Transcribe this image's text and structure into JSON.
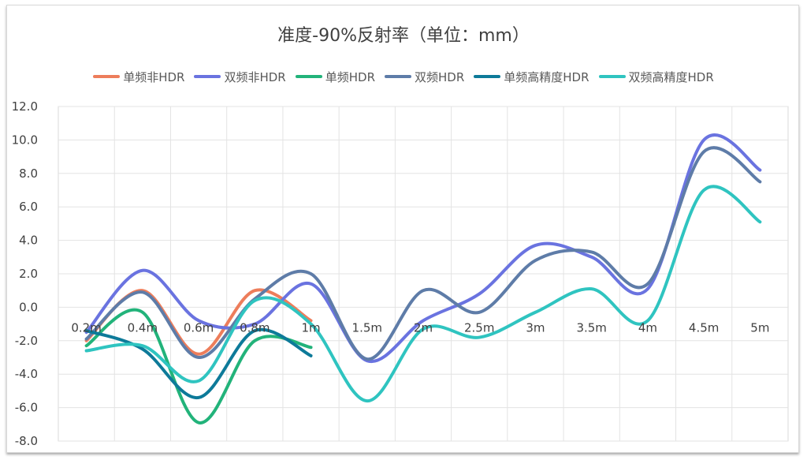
{
  "chart_data": {
    "type": "line",
    "title": "准度-90%反射率（单位：mm）",
    "xlabel": "",
    "ylabel": "",
    "categories": [
      "0.2m",
      "0.4m",
      "0.6m",
      "0.8m",
      "1m",
      "1.5m",
      "2m",
      "2.5m",
      "3m",
      "3.5m",
      "4m",
      "4.5m",
      "5m"
    ],
    "ylim": [
      -8,
      12
    ],
    "yticks": [
      "12.0",
      "10.0",
      "8.0",
      "6.0",
      "4.0",
      "2.0",
      "0.0",
      "-2.0",
      "-4.0",
      "-6.0",
      "-8.0"
    ],
    "grid": true,
    "legend_position": "top",
    "series": [
      {
        "name": "单频非HDR",
        "color": "#ED7D5B",
        "values": [
          -2.0,
          1.0,
          -2.8,
          1.0,
          -0.8,
          null,
          null,
          null,
          null,
          null,
          null,
          null,
          null
        ]
      },
      {
        "name": "双频非HDR",
        "color": "#6A73E0",
        "values": [
          -1.5,
          2.2,
          -0.8,
          -1.0,
          1.4,
          -3.2,
          -0.8,
          0.8,
          3.7,
          3.0,
          1.1,
          10.0,
          8.2
        ]
      },
      {
        "name": "单频HDR",
        "color": "#22B37A",
        "values": [
          -2.3,
          -0.3,
          -6.9,
          -2.0,
          -2.4,
          null,
          null,
          null,
          null,
          null,
          null,
          null,
          null
        ]
      },
      {
        "name": "双频HDR",
        "color": "#5E7CA8",
        "values": [
          -1.9,
          0.9,
          -3.0,
          0.5,
          2.0,
          -3.1,
          1.0,
          -0.3,
          2.8,
          3.3,
          1.4,
          9.3,
          7.5
        ]
      },
      {
        "name": "单频高精度HDR",
        "color": "#0D7A99",
        "values": [
          -1.4,
          -2.5,
          -5.4,
          -1.4,
          -2.9,
          null,
          null,
          null,
          null,
          null,
          null,
          null,
          null
        ]
      },
      {
        "name": "双频高精度HDR",
        "color": "#2FC4C0",
        "values": [
          -2.6,
          -2.3,
          -4.4,
          0.4,
          -1.0,
          -5.6,
          -1.3,
          -1.8,
          -0.3,
          1.1,
          -0.8,
          7.0,
          5.1
        ]
      }
    ]
  }
}
